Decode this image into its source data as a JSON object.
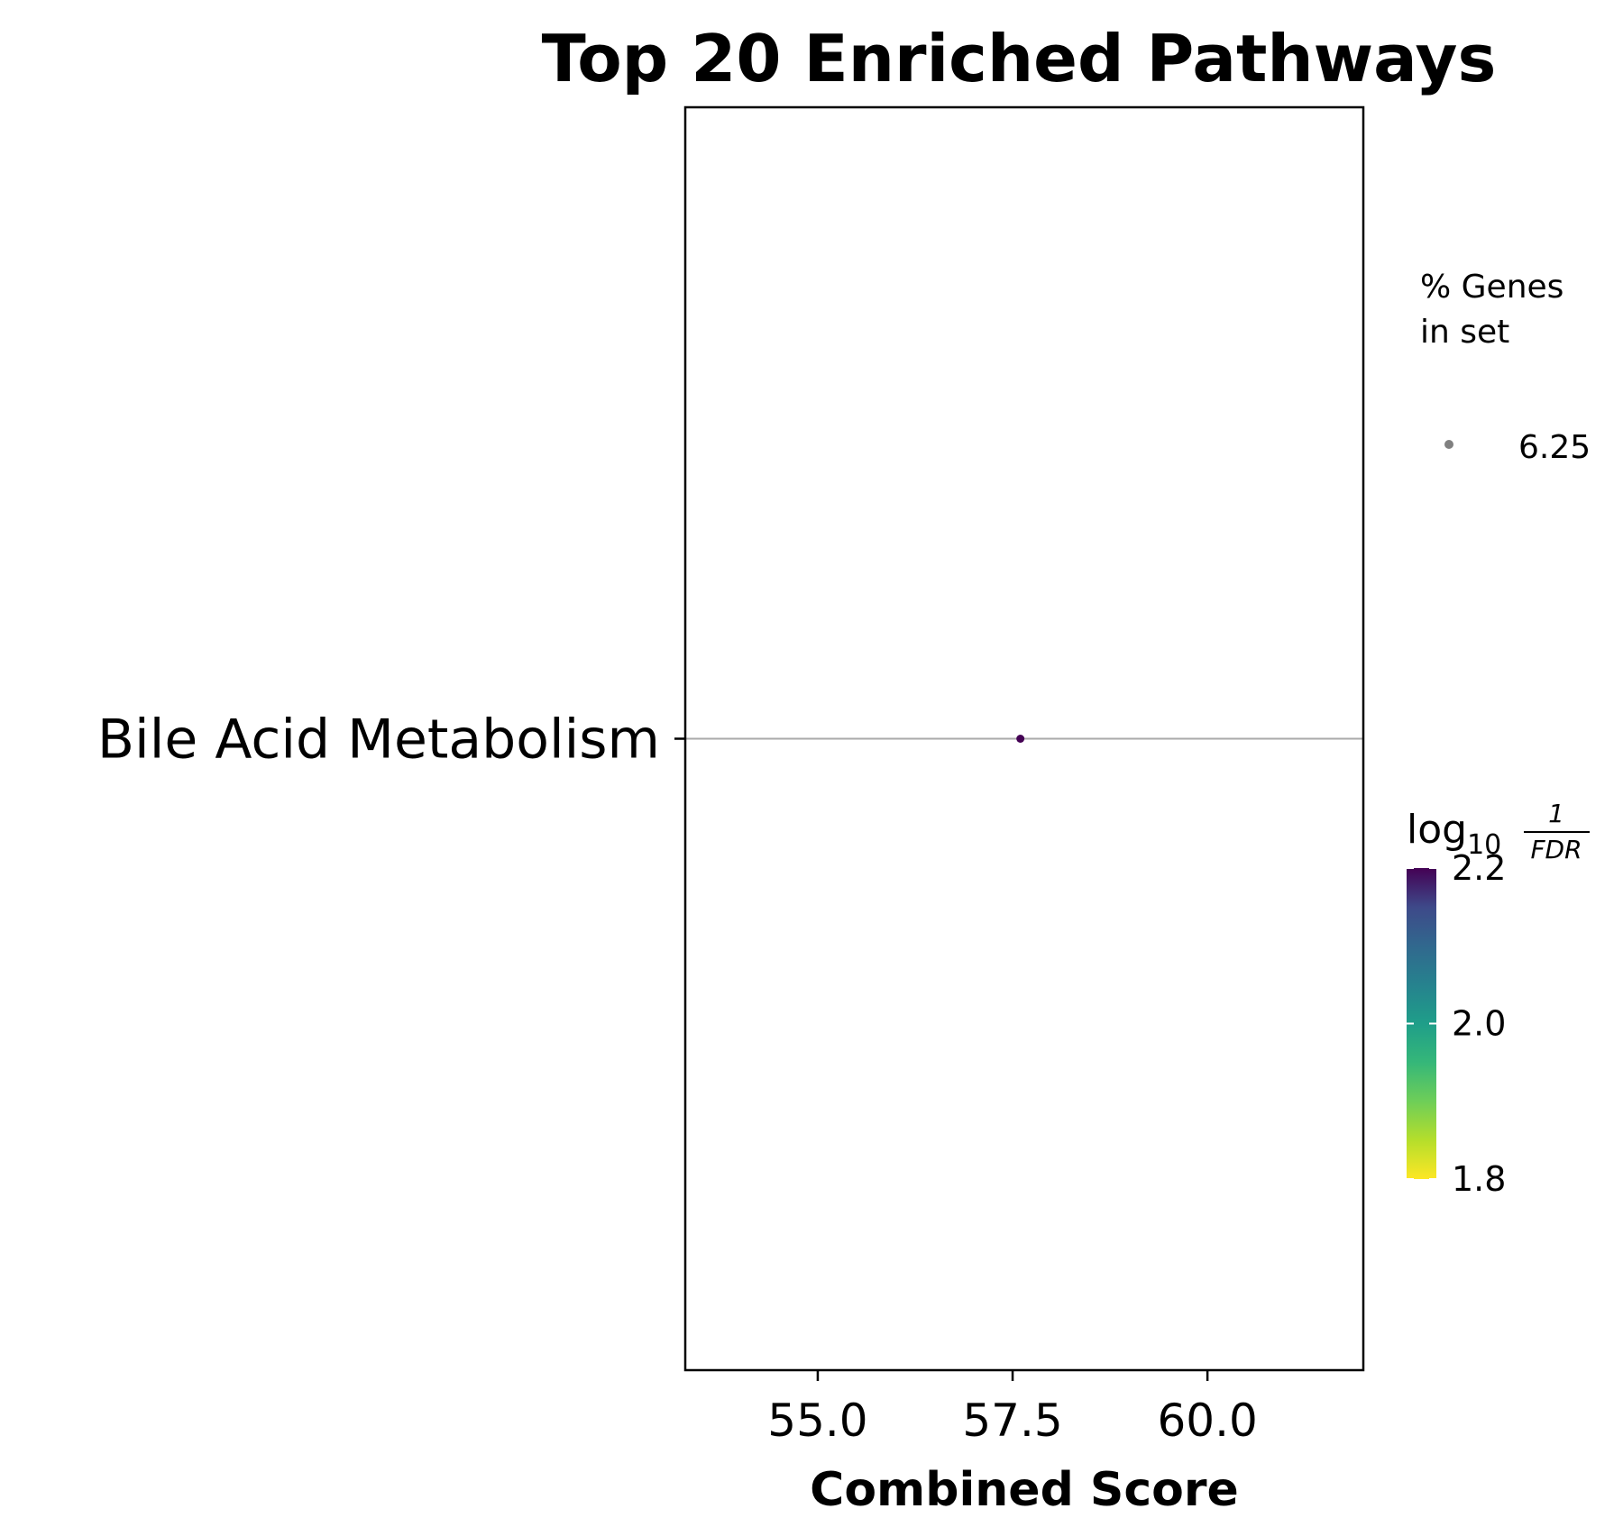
{
  "chart_data": {
    "type": "scatter",
    "title": "Top 20 Enriched Pathways",
    "xlabel": "Combined Score",
    "ylabel": "",
    "xlim": [
      53.3,
      62.0
    ],
    "xticks": [
      "55.0",
      "57.5",
      "60.0"
    ],
    "xtick_values": [
      55.0,
      57.5,
      60.0
    ],
    "categories": [
      "Bile Acid Metabolism"
    ],
    "points": [
      {
        "category": "Bile Acid Metabolism",
        "x": 57.6,
        "pct_genes": 6.25,
        "log10_inv_fdr": 2.2
      }
    ],
    "grid": "horizontal guide line at each category",
    "size_legend": {
      "title_line1": "% Genes",
      "title_line2": "in set",
      "entries": [
        "6.25"
      ]
    },
    "colorbar": {
      "title_main": "log",
      "title_sub": "10",
      "title_num": "1",
      "title_den": "FDR",
      "range": [
        1.8,
        2.2
      ],
      "ticks": [
        "2.2",
        "2.0",
        "1.8"
      ],
      "tick_values": [
        2.2,
        2.0,
        1.8
      ],
      "colormap": "viridis"
    },
    "colors": {
      "point": "#440154",
      "guide": "#aaaaaa",
      "legend_marker": "#808080"
    }
  }
}
